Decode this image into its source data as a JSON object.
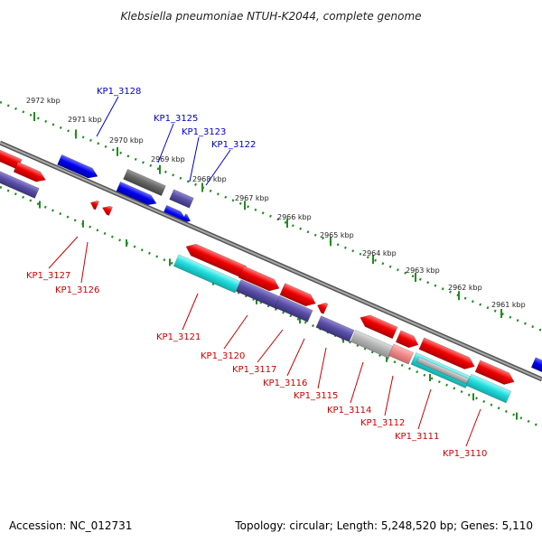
{
  "title": "Klebsiella pneumoniae NTUH-K2044, complete genome",
  "footer": {
    "accession": "Accession: NC_012731",
    "summary": "Topology: circular; Length: 5,248,520 bp; Genes: 5,110"
  },
  "colors": {
    "blue": "#0000ee",
    "red": "#ee0000",
    "purple": "#5a4fa8",
    "gray": "#6a6a6a",
    "light_gray": "#b5b5b5",
    "pink": "#f08a8a",
    "cyan": "#22dddd",
    "tick_green": "#228b22",
    "backbone": "#7a7a7a"
  },
  "scale_ticks": [
    {
      "label": "2972 kbp"
    },
    {
      "label": "2971 kbp"
    },
    {
      "label": "2970 kbp"
    },
    {
      "label": "2969 kbp"
    },
    {
      "label": "2968 kbp"
    },
    {
      "label": "2967 kbp"
    },
    {
      "label": "2966 kbp"
    },
    {
      "label": "2965 kbp"
    },
    {
      "label": "2964 kbp"
    },
    {
      "label": "2963 kbp"
    },
    {
      "label": "2962 kbp"
    },
    {
      "label": "2961 kbp"
    }
  ],
  "gene_labels_top": [
    "KP1_3128",
    "KP1_3125",
    "KP1_3123",
    "KP1_3122"
  ],
  "gene_labels_bottom": [
    "KP1_3127",
    "KP1_3126",
    "KP1_3121",
    "KP1_3120",
    "KP1_3117",
    "KP1_3116",
    "KP1_3115",
    "KP1_3114",
    "KP1_3112",
    "KP1_3111",
    "KP1_3110"
  ]
}
